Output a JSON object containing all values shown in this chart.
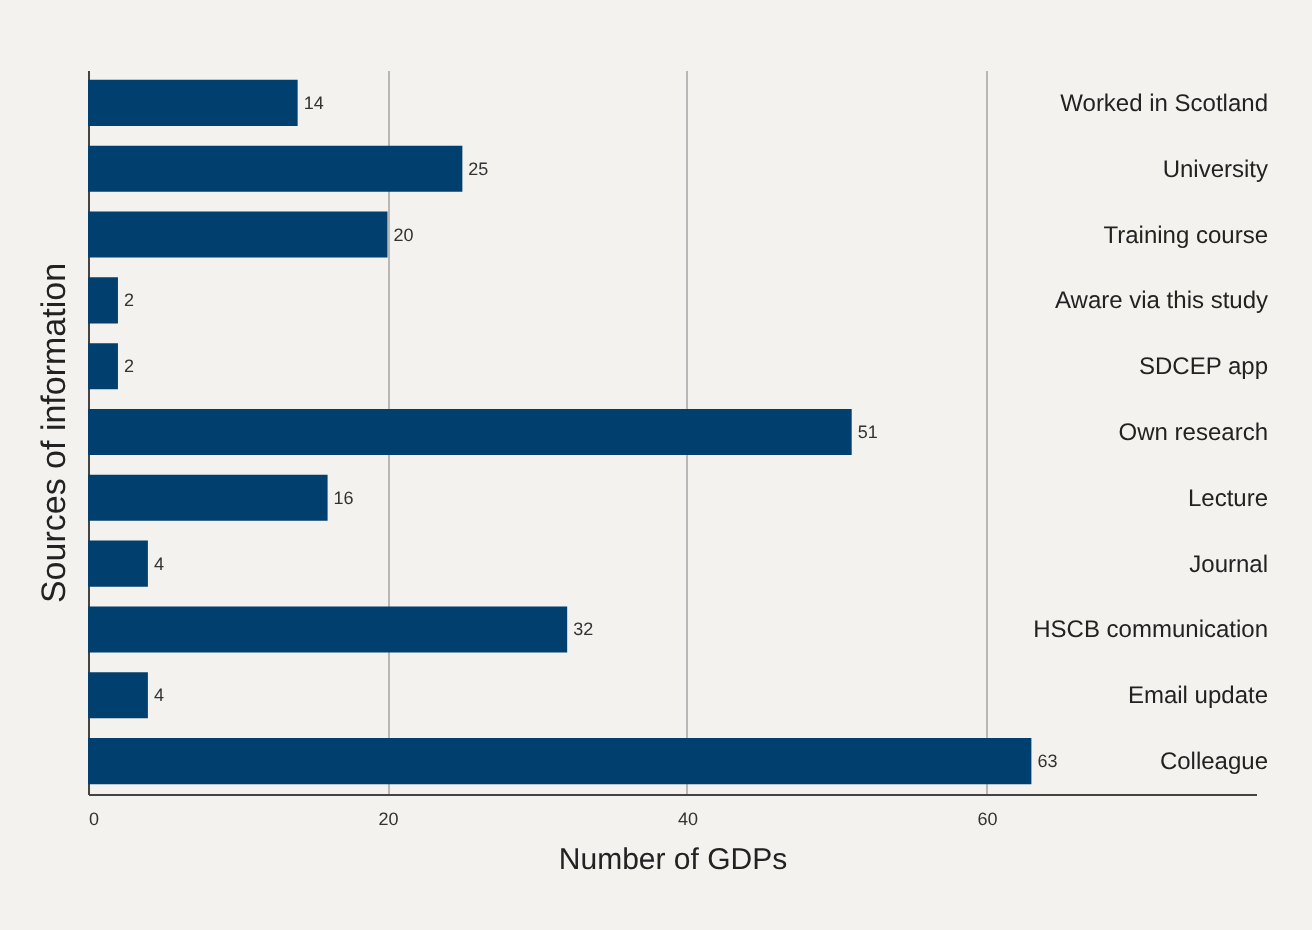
{
  "chart_data": {
    "type": "bar",
    "orientation": "horizontal",
    "xlabel": "Number of GDPs",
    "ylabel": "Sources of information",
    "categories": [
      "Worked in Scotland",
      "University",
      "Training course",
      "Aware via this study",
      "SDCEP app",
      "Own research",
      "Lecture",
      "Journal",
      "HSCB communication",
      "Email update",
      "Colleague"
    ],
    "values": [
      14,
      25,
      20,
      2,
      2,
      51,
      16,
      4,
      32,
      4,
      63
    ],
    "color": "#003f6e",
    "xlim": [
      0,
      78
    ],
    "xticks": [
      0,
      20,
      40,
      60
    ],
    "grid": "x",
    "data_labels": true
  }
}
